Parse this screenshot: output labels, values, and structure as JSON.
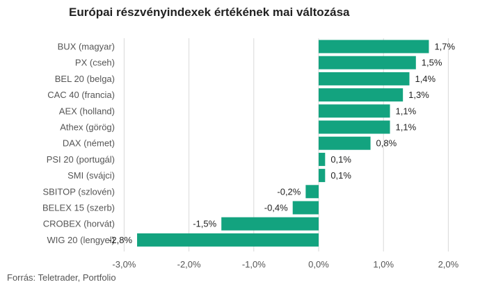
{
  "chart_data": {
    "type": "bar",
    "orientation": "horizontal",
    "title": "Európai részvényindexek értékének mai változása",
    "xlabel": "",
    "ylabel": "",
    "categories": [
      "BUX (magyar)",
      "PX (cseh)",
      "BEL 20 (belga)",
      "CAC 40 (francia)",
      "AEX (holland)",
      "Athex (görög)",
      "DAX (német)",
      "PSI 20 (portugál)",
      "SMI (svájci)",
      "SBITOP (szlovén)",
      "BELEX 15 (szerb)",
      "CROBEX (horvát)",
      "WIG 20 (lengyel)"
    ],
    "values": [
      1.7,
      1.5,
      1.4,
      1.3,
      1.1,
      1.1,
      0.8,
      0.1,
      0.1,
      -0.2,
      -0.4,
      -1.5,
      -2.8
    ],
    "value_labels": [
      "1,7%",
      "1,5%",
      "1,4%",
      "1,3%",
      "1,1%",
      "1,1%",
      "0,8%",
      "0,1%",
      "0,1%",
      "-0,2%",
      "-0,4%",
      "-1,5%",
      "-2,8%"
    ],
    "xlim": [
      -3.0,
      2.0
    ],
    "xticks": [
      -3,
      -2,
      -1,
      0,
      1,
      2
    ],
    "xtick_labels": [
      "-3,0%",
      "-2,0%",
      "-1,0%",
      "0,0%",
      "1,0%",
      "2,0%"
    ],
    "grid": "vertical",
    "legend": "none",
    "colors": {
      "bar": "#13a37f",
      "grid": "#d9d9d9"
    }
  },
  "source": "Forrás: Teletrader, Portfolio"
}
